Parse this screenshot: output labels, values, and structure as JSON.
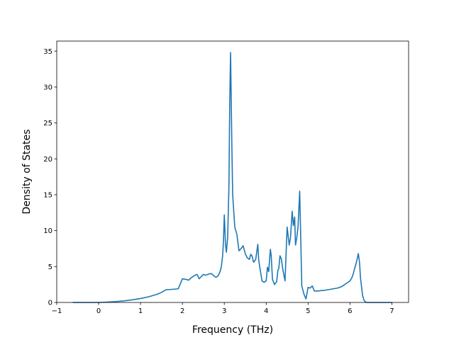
{
  "chart_data": {
    "type": "line",
    "title": "",
    "xlabel": "Frequency (THz)",
    "ylabel": "Density of States",
    "xlim": [
      -1,
      7.4
    ],
    "ylim": [
      0,
      36.4
    ],
    "xticks": [
      -1,
      0,
      1,
      2,
      3,
      4,
      5,
      6,
      7
    ],
    "xtick_labels": [
      "−1",
      "0",
      "1",
      "2",
      "3",
      "4",
      "5",
      "6",
      "7"
    ],
    "yticks": [
      0,
      5,
      10,
      15,
      20,
      25,
      30,
      35
    ],
    "ytick_labels": [
      "0",
      "5",
      "10",
      "15",
      "20",
      "25",
      "30",
      "35"
    ],
    "grid": false,
    "series": [
      {
        "color": "#1f77b4",
        "x": [
          -0.62,
          -0.3,
          0.0,
          0.2,
          0.4,
          0.6,
          0.8,
          1.0,
          1.2,
          1.4,
          1.5,
          1.6,
          1.65,
          1.7,
          1.8,
          1.9,
          1.95,
          2.0,
          2.1,
          2.15,
          2.2,
          2.3,
          2.35,
          2.4,
          2.5,
          2.55,
          2.6,
          2.65,
          2.7,
          2.75,
          2.8,
          2.85,
          2.9,
          2.93,
          2.96,
          2.98,
          3.0,
          3.03,
          3.05,
          3.08,
          3.11,
          3.13,
          3.15,
          3.18,
          3.2,
          3.25,
          3.3,
          3.35,
          3.4,
          3.45,
          3.5,
          3.55,
          3.6,
          3.63,
          3.66,
          3.7,
          3.75,
          3.8,
          3.82,
          3.85,
          3.9,
          3.95,
          4.0,
          4.03,
          4.06,
          4.1,
          4.12,
          4.15,
          4.2,
          4.25,
          4.28,
          4.3,
          4.33,
          4.36,
          4.4,
          4.45,
          4.5,
          4.55,
          4.58,
          4.62,
          4.65,
          4.68,
          4.7,
          4.73,
          4.76,
          4.8,
          4.85,
          4.9,
          4.92,
          4.95,
          5.0,
          5.05,
          5.1,
          5.15,
          5.2,
          5.25,
          5.3,
          5.4,
          5.5,
          5.6,
          5.7,
          5.8,
          5.85,
          5.9,
          5.95,
          6.0,
          6.05,
          6.08,
          6.1,
          6.15,
          6.2,
          6.23,
          6.25,
          6.28,
          6.3,
          6.33,
          6.36,
          6.4,
          6.5,
          7.0
        ],
        "y": [
          0.0,
          0.0,
          0.0,
          0.05,
          0.12,
          0.22,
          0.36,
          0.55,
          0.8,
          1.15,
          1.4,
          1.75,
          1.8,
          1.8,
          1.85,
          1.9,
          2.6,
          3.3,
          3.2,
          3.1,
          3.4,
          3.8,
          3.9,
          3.3,
          3.9,
          3.8,
          3.9,
          4.0,
          4.0,
          3.7,
          3.5,
          3.7,
          4.3,
          5.0,
          6.5,
          8.5,
          12.2,
          8.0,
          7.0,
          9.0,
          16.0,
          28.0,
          34.8,
          22.0,
          15.0,
          10.5,
          9.5,
          7.2,
          7.5,
          7.9,
          6.8,
          6.2,
          6.0,
          6.7,
          6.5,
          5.6,
          6.0,
          8.1,
          6.0,
          4.8,
          3.0,
          2.8,
          3.0,
          4.9,
          4.3,
          7.4,
          6.5,
          3.2,
          2.5,
          2.9,
          4.5,
          4.7,
          6.5,
          6.1,
          4.5,
          3.0,
          10.5,
          8.0,
          9.0,
          12.7,
          10.7,
          11.9,
          8.0,
          9.0,
          10.5,
          15.5,
          2.3,
          1.2,
          0.9,
          0.5,
          2.1,
          2.0,
          2.3,
          1.6,
          1.6,
          1.6,
          1.65,
          1.7,
          1.8,
          1.9,
          2.0,
          2.2,
          2.4,
          2.6,
          2.8,
          3.0,
          3.5,
          4.0,
          4.5,
          5.5,
          6.8,
          5.5,
          3.5,
          2.0,
          1.0,
          0.4,
          0.1,
          0.0,
          0.0,
          0.0
        ]
      }
    ]
  }
}
